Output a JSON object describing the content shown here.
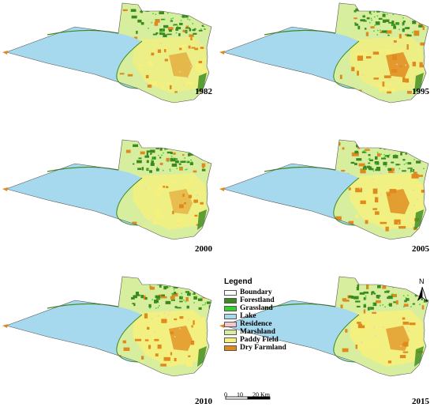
{
  "panels": [
    {
      "year": "1982"
    },
    {
      "year": "1995"
    },
    {
      "year": "2000"
    },
    {
      "year": "2005"
    },
    {
      "year": "2010"
    },
    {
      "year": "2015"
    }
  ],
  "legend": {
    "title": "Legend",
    "items": [
      {
        "label": "Boundary",
        "color": "#ffffff"
      },
      {
        "label": "Forestland",
        "color": "#3a8a1e"
      },
      {
        "label": "Grassland",
        "color": "#35d12a"
      },
      {
        "label": "Lake",
        "color": "#a6d8ee"
      },
      {
        "label": "Residence",
        "color": "#f5c6cb"
      },
      {
        "label": "Marshland",
        "color": "#d6ee9e"
      },
      {
        "label": "Paddy Field",
        "color": "#f7f07a"
      },
      {
        "label": "Dry Farmland",
        "color": "#e08a1e"
      }
    ]
  },
  "north_arrow": {
    "letter": "N"
  },
  "scale_bar": {
    "ticks": [
      "0",
      "10",
      "20 Km"
    ]
  }
}
